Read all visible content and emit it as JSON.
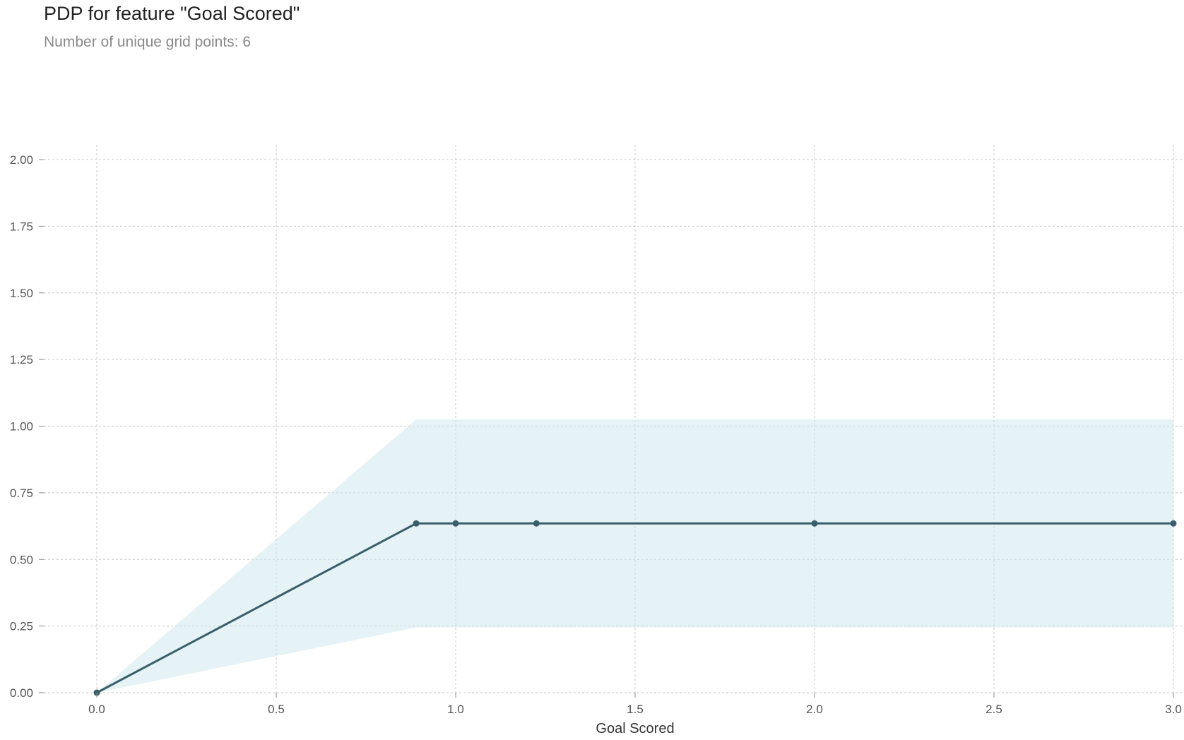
{
  "chart_data": {
    "type": "line",
    "title": "PDP for feature \"Goal Scored\"",
    "subtitle": "Number of unique grid points: 6",
    "xlabel": "Goal Scored",
    "ylabel": "",
    "xlim": [
      0,
      3
    ],
    "ylim": [
      0,
      2
    ],
    "xticks": [
      0,
      0.5,
      1,
      1.5,
      2,
      2.5,
      3
    ],
    "xtick_labels": [
      "0.0",
      "0.5",
      "1.0",
      "1.5",
      "2.0",
      "2.5",
      "3.0"
    ],
    "yticks": [
      0,
      0.25,
      0.5,
      0.75,
      1,
      1.25,
      1.5,
      1.75,
      2
    ],
    "ytick_labels": [
      "0.00",
      "0.25",
      "0.50",
      "0.75",
      "1.00",
      "1.25",
      "1.50",
      "1.75",
      "2.00"
    ],
    "grid": true,
    "series": [
      {
        "x": [
          0,
          0.89,
          1.0,
          1.225,
          2.0,
          3.0
        ],
        "y": [
          0,
          0.635,
          0.635,
          0.635,
          0.635,
          0.635
        ],
        "lower": [
          0,
          0.245,
          0.245,
          0.245,
          0.245,
          0.245
        ],
        "upper": [
          0,
          1.025,
          1.025,
          1.025,
          1.025,
          1.025
        ],
        "color": "#3a5f6b",
        "fill_color": "#cfe7ef"
      }
    ]
  }
}
